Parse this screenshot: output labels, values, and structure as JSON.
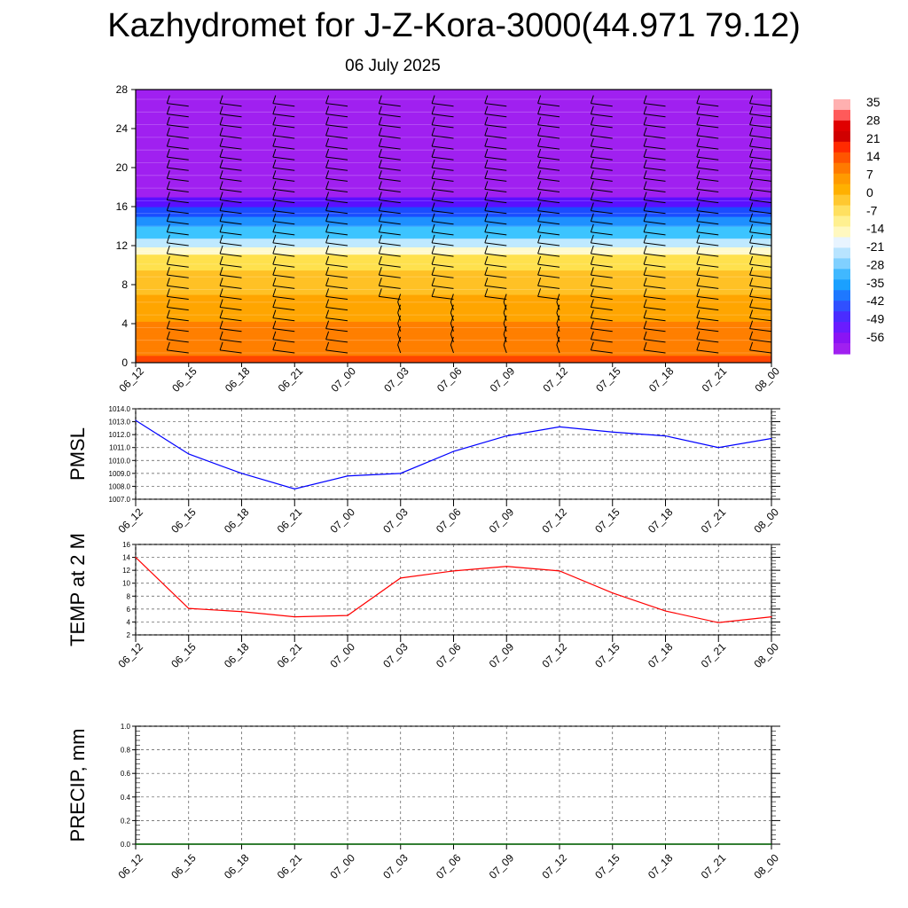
{
  "title": "Kazhydromet for J-Z-Kora-3000(44.971 79.12)",
  "subtitle": "06 July 2025",
  "chart_data": [
    {
      "type": "heatmap",
      "description_role": "time-height cross-section with wind barbs",
      "x_ticks": [
        "06_12",
        "06_15",
        "06_18",
        "06_21",
        "07_00",
        "07_03",
        "07_06",
        "07_09",
        "07_12",
        "07_15",
        "07_18",
        "07_21",
        "08_00"
      ],
      "y_ticks": [
        0,
        4,
        8,
        12,
        16,
        20,
        24,
        28
      ],
      "ylim": [
        0,
        28
      ],
      "colorbar_labels": [
        "35",
        "28",
        "21",
        "14",
        "7",
        "0",
        "-7",
        "-14",
        "-21",
        "-28",
        "-35",
        "-42",
        "-49",
        "-56"
      ],
      "levels": [
        0,
        2,
        4,
        6,
        8,
        10,
        11,
        12,
        14,
        16,
        18,
        20,
        22,
        24,
        26,
        28
      ],
      "values_by_level": [
        12,
        9,
        5,
        1,
        -4,
        -9,
        -12,
        -21,
        -32,
        -44,
        -57,
        -66,
        -62,
        -62,
        -64,
        -64
      ],
      "colormap": [
        "#a020f0",
        "#5a10ff",
        "#1a4dff",
        "#1e90ff",
        "#3cc4ff",
        "#bfe9ff",
        "#fffacd",
        "#ffe14d",
        "#ffc125",
        "#ffa500",
        "#ff7f00",
        "#ff4500",
        "#e51400",
        "#c00000",
        "#ff9999"
      ]
    },
    {
      "type": "line",
      "ylabel": "PMSL",
      "ylim": [
        1007.0,
        1014.0
      ],
      "y_ticks": [
        "1007.0",
        "1008.0",
        "1009.0",
        "1010.0",
        "1011.0",
        "1012.0",
        "1013.0",
        "1014.0"
      ],
      "categories": [
        "06_12",
        "06_15",
        "06_18",
        "06_21",
        "07_00",
        "07_03",
        "07_06",
        "07_09",
        "07_12",
        "07_15",
        "07_18",
        "07_21",
        "08_00"
      ],
      "values": [
        1013.1,
        1010.5,
        1009.0,
        1007.8,
        1008.8,
        1009.0,
        1010.7,
        1011.9,
        1012.6,
        1012.2,
        1011.9,
        1011.0,
        1011.7
      ],
      "color": "#0000ff"
    },
    {
      "type": "line",
      "ylabel": "TEMP at 2 M",
      "ylim": [
        2,
        16
      ],
      "y_ticks": [
        "2",
        "4",
        "6",
        "8",
        "10",
        "12",
        "14",
        "16"
      ],
      "categories": [
        "06_12",
        "06_15",
        "06_18",
        "06_21",
        "07_00",
        "07_03",
        "07_06",
        "07_09",
        "07_12",
        "07_15",
        "07_18",
        "07_21",
        "08_00"
      ],
      "values": [
        14.0,
        6.1,
        5.6,
        4.8,
        5.0,
        10.8,
        11.9,
        12.6,
        11.9,
        8.5,
        5.7,
        3.9,
        4.8
      ],
      "color": "#ff0000"
    },
    {
      "type": "line",
      "ylabel": "PRECIP, mm",
      "ylim": [
        0.0,
        1.0
      ],
      "y_ticks": [
        "0.0",
        "0.2",
        "0.4",
        "0.6",
        "0.8",
        "1.0"
      ],
      "categories": [
        "06_12",
        "06_15",
        "06_18",
        "06_21",
        "07_00",
        "07_03",
        "07_06",
        "07_09",
        "07_12",
        "07_15",
        "07_18",
        "07_21",
        "08_00"
      ],
      "values": [
        0,
        0,
        0,
        0,
        0,
        0,
        0,
        0,
        0,
        0,
        0,
        0,
        0
      ],
      "color": "#006400"
    }
  ]
}
